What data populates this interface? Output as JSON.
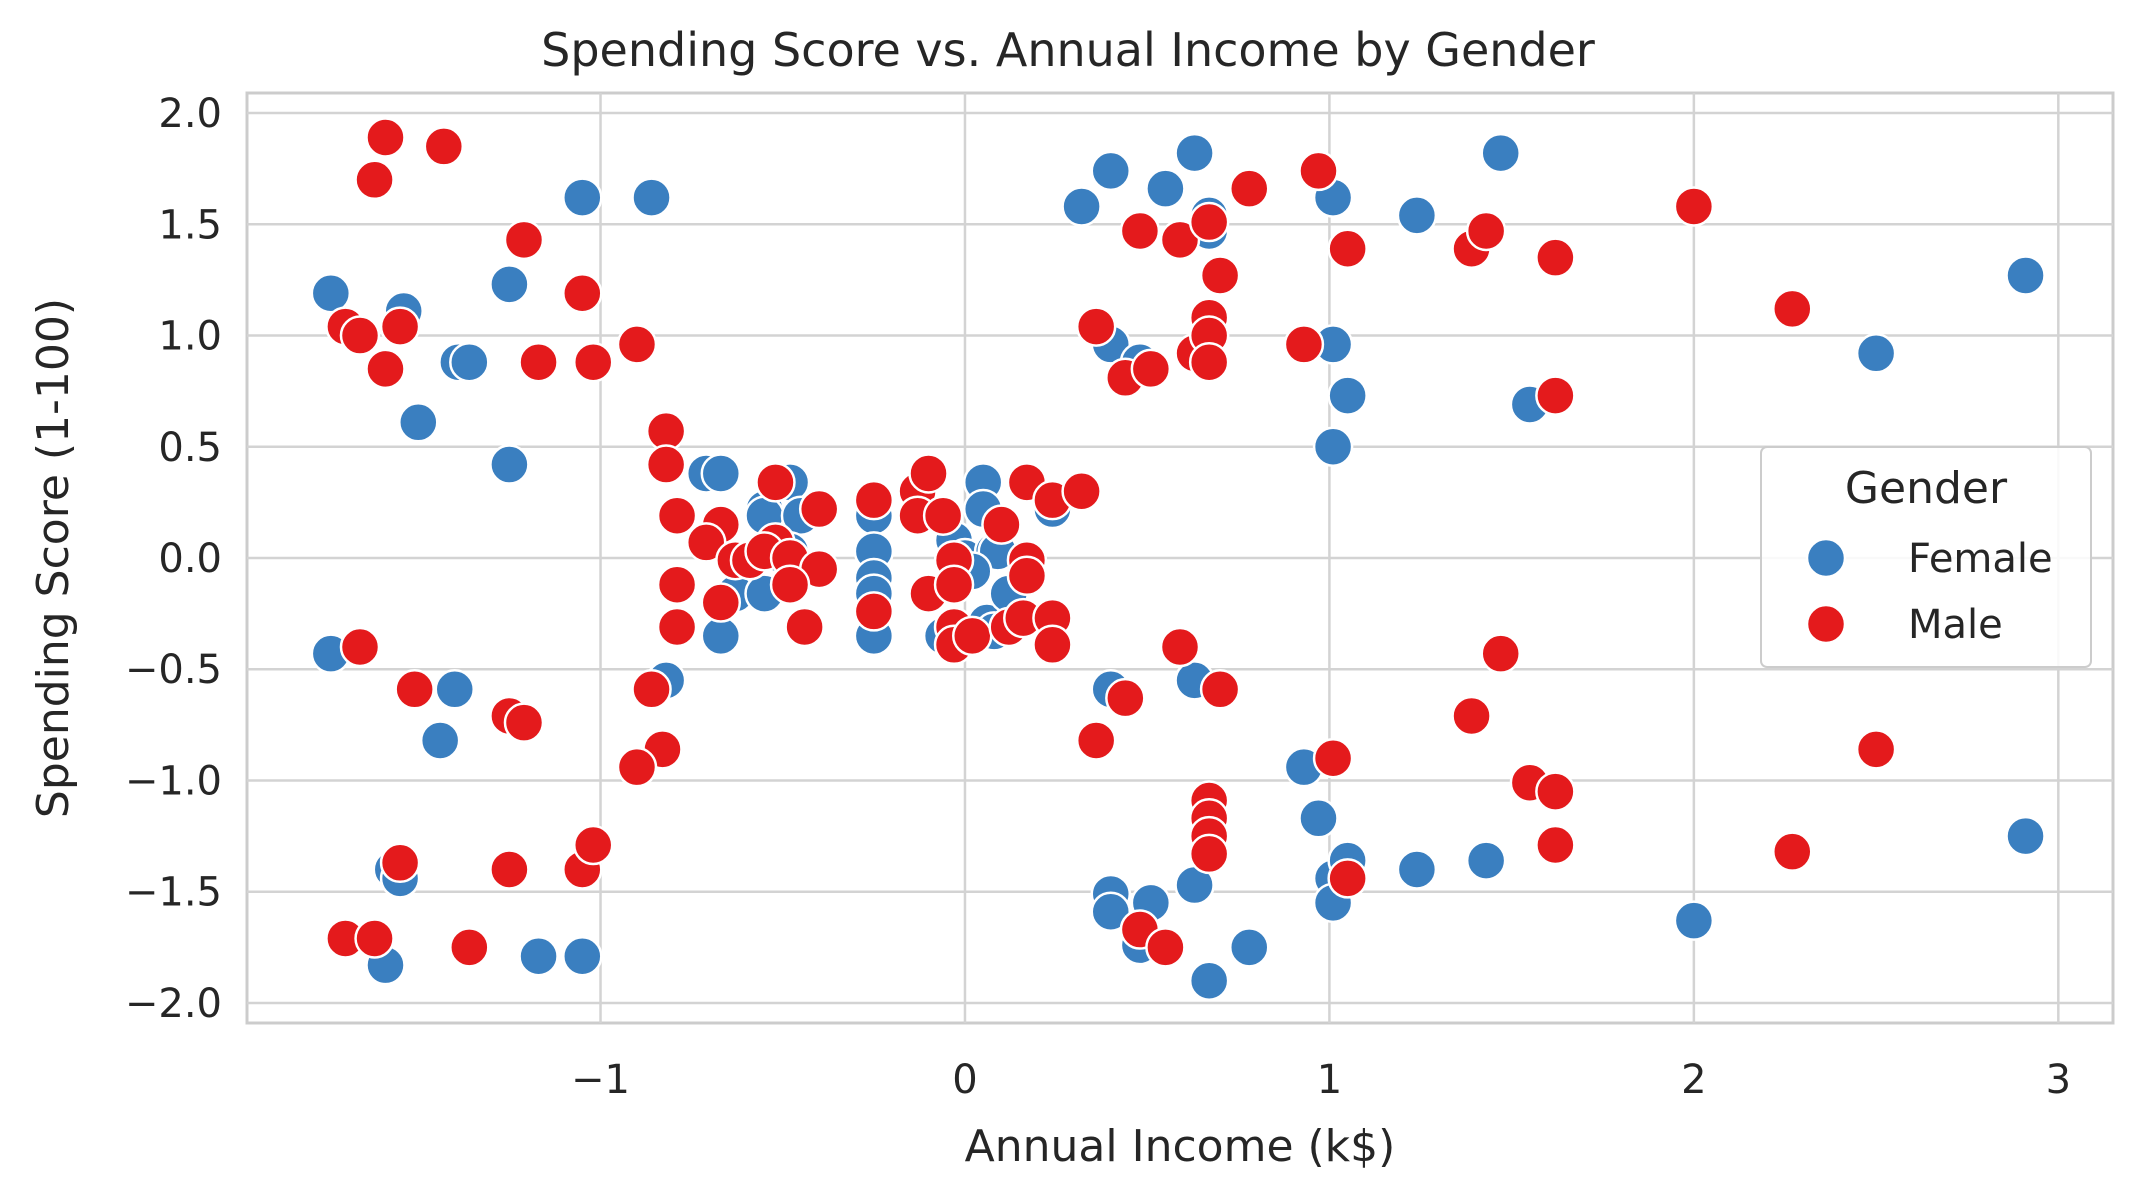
{
  "chart_data": {
    "type": "scatter",
    "title": "Spending Score vs. Annual Income by Gender",
    "xlabel": "Annual Income (k$)",
    "ylabel": "Spending Score (1-100)",
    "xlim": [
      -1.97,
      3.15
    ],
    "ylim": [
      -2.09,
      2.09
    ],
    "xticks": [
      -1,
      0,
      1,
      2,
      3
    ],
    "xtick_labels": [
      "−1",
      "0",
      "1",
      "2",
      "3"
    ],
    "yticks": [
      -2.0,
      -1.5,
      -1.0,
      -0.5,
      0.0,
      0.5,
      1.0,
      1.5,
      2.0
    ],
    "ytick_labels": [
      "−2.0",
      "−1.5",
      "−1.0",
      "−0.5",
      "0.0",
      "0.5",
      "1.0",
      "1.5",
      "2.0"
    ],
    "grid": true,
    "legend": {
      "title": "Gender",
      "placement": "right"
    },
    "series": [
      {
        "name": "Female",
        "color": "#3a7fc0",
        "points": [
          [
            -1.74,
            1.19
          ],
          [
            -1.54,
            1.11
          ],
          [
            -1.5,
            0.61
          ],
          [
            -1.39,
            0.88
          ],
          [
            -1.36,
            0.88
          ],
          [
            -1.25,
            1.23
          ],
          [
            -1.25,
            0.42
          ],
          [
            -1.05,
            1.62
          ],
          [
            -0.86,
            1.62
          ],
          [
            -1.74,
            -0.43
          ],
          [
            -1.4,
            -0.59
          ],
          [
            -1.44,
            -0.82
          ],
          [
            -0.82,
            -0.55
          ],
          [
            -1.57,
            -1.4
          ],
          [
            -1.55,
            -1.44
          ],
          [
            -1.59,
            -1.83
          ],
          [
            -1.17,
            -1.79
          ],
          [
            -1.05,
            -1.79
          ],
          [
            -0.71,
            0.38
          ],
          [
            -0.67,
            0.38
          ],
          [
            -0.55,
            0.22
          ],
          [
            -0.55,
            0.19
          ],
          [
            -0.48,
            0.34
          ],
          [
            -0.45,
            0.19
          ],
          [
            -0.48,
            0.03
          ],
          [
            -0.51,
            0.02
          ],
          [
            -0.63,
            -0.16
          ],
          [
            -0.55,
            -0.16
          ],
          [
            -0.67,
            -0.35
          ],
          [
            -0.25,
            0.19
          ],
          [
            -0.25,
            0.03
          ],
          [
            -0.25,
            -0.09
          ],
          [
            -0.25,
            -0.16
          ],
          [
            -0.25,
            -0.35
          ],
          [
            0.05,
            0.34
          ],
          [
            0.05,
            0.22
          ],
          [
            -0.03,
            0.08
          ],
          [
            0.0,
            0.0
          ],
          [
            0.08,
            0.03
          ],
          [
            0.09,
            0.03
          ],
          [
            0.02,
            -0.06
          ],
          [
            -0.06,
            -0.35
          ],
          [
            0.02,
            -0.35
          ],
          [
            0.06,
            -0.29
          ],
          [
            0.08,
            -0.33
          ],
          [
            0.12,
            -0.16
          ],
          [
            0.24,
            0.22
          ],
          [
            0.32,
            1.58
          ],
          [
            0.4,
            1.74
          ],
          [
            0.55,
            1.66
          ],
          [
            0.63,
            1.82
          ],
          [
            0.67,
            1.54
          ],
          [
            0.67,
            1.47
          ],
          [
            1.01,
            1.62
          ],
          [
            1.24,
            1.54
          ],
          [
            1.47,
            1.82
          ],
          [
            2.91,
            1.27
          ],
          [
            0.4,
            0.96
          ],
          [
            0.48,
            0.88
          ],
          [
            1.01,
            0.96
          ],
          [
            1.05,
            0.73
          ],
          [
            1.55,
            0.69
          ],
          [
            1.01,
            0.5
          ],
          [
            2.5,
            0.92
          ],
          [
            0.4,
            -0.59
          ],
          [
            0.63,
            -0.55
          ],
          [
            0.93,
            -0.94
          ],
          [
            0.97,
            -1.17
          ],
          [
            1.01,
            -1.44
          ],
          [
            1.05,
            -1.36
          ],
          [
            1.01,
            -1.55
          ],
          [
            1.24,
            -1.4
          ],
          [
            1.43,
            -1.36
          ],
          [
            0.4,
            -1.51
          ],
          [
            0.4,
            -1.59
          ],
          [
            0.48,
            -1.74
          ],
          [
            0.51,
            -1.55
          ],
          [
            0.63,
            -1.47
          ],
          [
            0.67,
            -1.9
          ],
          [
            0.78,
            -1.75
          ],
          [
            2.0,
            -1.63
          ],
          [
            2.91,
            -1.25
          ]
        ]
      },
      {
        "name": "Male",
        "color": "#e41a1c",
        "points": [
          [
            -1.59,
            1.89
          ],
          [
            -1.43,
            1.85
          ],
          [
            -1.62,
            1.7
          ],
          [
            -1.21,
            1.43
          ],
          [
            -1.7,
            1.04
          ],
          [
            -1.66,
            1.0
          ],
          [
            -1.55,
            1.04
          ],
          [
            -1.59,
            0.85
          ],
          [
            -1.17,
            0.88
          ],
          [
            -1.02,
            0.88
          ],
          [
            -1.05,
            1.19
          ],
          [
            -0.9,
            0.96
          ],
          [
            -1.66,
            -0.4
          ],
          [
            -1.51,
            -0.59
          ],
          [
            -1.25,
            -0.71
          ],
          [
            -1.21,
            -0.74
          ],
          [
            -0.86,
            -0.59
          ],
          [
            -0.83,
            -0.86
          ],
          [
            -0.9,
            -0.94
          ],
          [
            -1.7,
            -1.71
          ],
          [
            -1.62,
            -1.71
          ],
          [
            -1.36,
            -1.75
          ],
          [
            -1.55,
            -1.37
          ],
          [
            -1.25,
            -1.4
          ],
          [
            -1.05,
            -1.4
          ],
          [
            -1.02,
            -1.29
          ],
          [
            -0.82,
            0.57
          ],
          [
            -0.82,
            0.42
          ],
          [
            -0.79,
            0.19
          ],
          [
            -0.67,
            0.15
          ],
          [
            -0.71,
            0.07
          ],
          [
            -0.63,
            -0.01
          ],
          [
            -0.59,
            -0.01
          ],
          [
            -0.52,
            0.34
          ],
          [
            -0.52,
            0.07
          ],
          [
            -0.55,
            0.03
          ],
          [
            -0.48,
            0.0
          ],
          [
            -0.4,
            0.22
          ],
          [
            -0.4,
            -0.05
          ],
          [
            -0.48,
            -0.12
          ],
          [
            -0.67,
            -0.2
          ],
          [
            -0.79,
            -0.12
          ],
          [
            -0.79,
            -0.31
          ],
          [
            -0.44,
            -0.31
          ],
          [
            -0.25,
            0.26
          ],
          [
            -0.25,
            -0.24
          ],
          [
            -0.13,
            0.3
          ],
          [
            -0.1,
            0.38
          ],
          [
            -0.13,
            0.19
          ],
          [
            -0.06,
            0.19
          ],
          [
            -0.1,
            -0.16
          ],
          [
            -0.03,
            -0.01
          ],
          [
            -0.03,
            -0.12
          ],
          [
            -0.03,
            -0.31
          ],
          [
            -0.03,
            -0.39
          ],
          [
            0.02,
            -0.35
          ],
          [
            0.1,
            0.15
          ],
          [
            0.12,
            -0.31
          ],
          [
            0.16,
            -0.27
          ],
          [
            0.17,
            -0.01
          ],
          [
            0.17,
            -0.08
          ],
          [
            0.17,
            0.34
          ],
          [
            0.24,
            0.26
          ],
          [
            0.24,
            -0.27
          ],
          [
            0.24,
            -0.39
          ],
          [
            0.32,
            0.3
          ],
          [
            0.36,
            1.04
          ],
          [
            0.48,
            1.47
          ],
          [
            0.59,
            1.43
          ],
          [
            0.67,
            1.51
          ],
          [
            0.7,
            1.27
          ],
          [
            0.78,
            1.66
          ],
          [
            0.97,
            1.74
          ],
          [
            1.05,
            1.39
          ],
          [
            1.39,
            1.39
          ],
          [
            1.43,
            1.47
          ],
          [
            1.62,
            1.35
          ],
          [
            2.0,
            1.58
          ],
          [
            2.27,
            1.12
          ],
          [
            0.44,
            0.81
          ],
          [
            0.51,
            0.85
          ],
          [
            0.63,
            0.92
          ],
          [
            0.67,
            1.08
          ],
          [
            0.67,
            1.0
          ],
          [
            0.67,
            0.88
          ],
          [
            0.93,
            0.96
          ],
          [
            1.62,
            0.73
          ],
          [
            0.36,
            -0.82
          ],
          [
            0.44,
            -0.63
          ],
          [
            0.59,
            -0.4
          ],
          [
            0.7,
            -0.59
          ],
          [
            1.01,
            -0.9
          ],
          [
            1.39,
            -0.71
          ],
          [
            1.47,
            -0.43
          ],
          [
            1.55,
            -1.01
          ],
          [
            1.62,
            -1.05
          ],
          [
            2.5,
            -0.86
          ],
          [
            0.67,
            -1.09
          ],
          [
            0.67,
            -1.17
          ],
          [
            0.67,
            -1.25
          ],
          [
            0.67,
            -1.33
          ],
          [
            1.05,
            -1.44
          ],
          [
            1.62,
            -1.29
          ],
          [
            2.27,
            -1.32
          ],
          [
            0.48,
            -1.67
          ],
          [
            0.55,
            -1.75
          ]
        ]
      }
    ]
  }
}
